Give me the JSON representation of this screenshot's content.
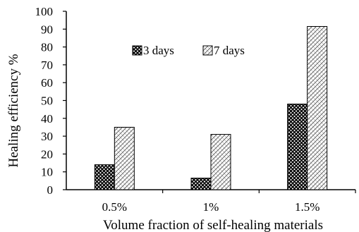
{
  "chart_data": {
    "type": "bar",
    "title": "",
    "xlabel": "Volume fraction of self-healing materials",
    "ylabel": "Healing efficiency %",
    "categories": [
      "0.5%",
      "1%",
      "1.5%"
    ],
    "series": [
      {
        "name": "3 days",
        "values": [
          14,
          6.5,
          48
        ],
        "pattern": "cross-hatch",
        "color": "#000000"
      },
      {
        "name": "7 days",
        "values": [
          35,
          31,
          91.5
        ],
        "pattern": "diagonal-hatch",
        "color": "#000000"
      }
    ],
    "ylim": [
      0,
      100
    ],
    "yticks": [
      0,
      10,
      20,
      30,
      40,
      50,
      60,
      70,
      80,
      90,
      100
    ],
    "grid": false,
    "legend_position": "top-center"
  }
}
